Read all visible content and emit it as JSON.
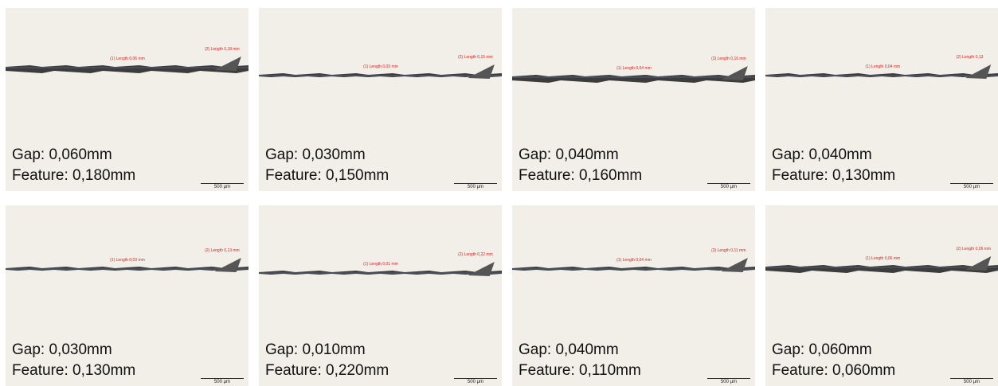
{
  "panels": [
    {
      "gap": "Gap: 0,060mm",
      "feature": "Feature: 0,180mm",
      "label_1": "(1) Length 0,06 mm",
      "label_2": "(2) Length 0,18 mm",
      "scale": "500 µm"
    },
    {
      "gap": "Gap: 0,030mm",
      "feature": "Feature: 0,150mm",
      "label_1": "(1) Length 0,03 mm",
      "label_2": "(2) Length 0,15 mm",
      "scale": "500 µm"
    },
    {
      "gap": "Gap: 0,040mm",
      "feature": "Feature: 0,160mm",
      "label_1": "(1) Length 0,04 mm",
      "label_2": "(2) Length 0,16 mm",
      "scale": "500 µm"
    },
    {
      "gap": "Gap: 0,040mm",
      "feature": "Feature: 0,130mm",
      "label_1": "(1) Length 0,04 mm",
      "label_2": "(2) Length 0,13",
      "scale": "500 µm"
    },
    {
      "gap": "Gap: 0,030mm",
      "feature": "Feature: 0,130mm",
      "label_1": "(1) Length 0,03 mm",
      "label_2": "(2) Length 0,13 mm",
      "scale": "500 µm"
    },
    {
      "gap": "Gap: 0,010mm",
      "feature": "Feature: 0,220mm",
      "label_1": "(1) Length 0,01 mm",
      "label_2": "(2) Length 0,22 mm",
      "scale": "500 µm"
    },
    {
      "gap": "Gap: 0,040mm",
      "feature": "Feature: 0,110mm",
      "label_1": "(1) Length 0,04 mm",
      "label_2": "(2) Length 0,11 mm",
      "scale": "500 µm"
    },
    {
      "gap": "Gap: 0,060mm",
      "feature": "Feature: 0,060mm",
      "label_1": "(1) Length 0,06 mm",
      "label_2": "(2) Length 0,06 mm",
      "scale": "500 µm"
    }
  ]
}
